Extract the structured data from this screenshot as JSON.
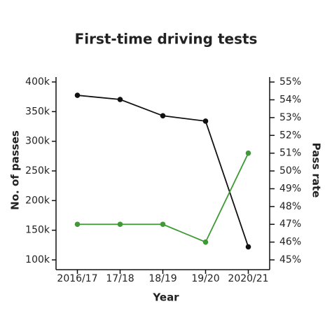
{
  "chart_data": {
    "type": "line",
    "title": "First-time driving tests",
    "x_label": "Year",
    "y_label": "No. of passes",
    "y2_label": "Pass rate",
    "categories": [
      "2016/17",
      "17/18",
      "18/19",
      "19/20",
      "2020/21"
    ],
    "series": [
      {
        "name": "No. of passes",
        "color": "#111111",
        "values": [
          377500,
          370500,
          343000,
          334000,
          122000
        ]
      },
      {
        "name": "Pass rate",
        "color": "#3d9a35",
        "axis": "y2",
        "values": [
          47,
          47,
          47,
          46,
          51
        ]
      }
    ],
    "ylim": [
      83500,
      408300
    ],
    "yticks": [
      {
        "value": 100000,
        "label": "100k"
      },
      {
        "value": 150000,
        "label": "150k"
      },
      {
        "value": 200000,
        "label": "200k"
      },
      {
        "value": 250000,
        "label": "250k"
      },
      {
        "value": 300000,
        "label": "300k"
      },
      {
        "value": 350000,
        "label": "350k"
      },
      {
        "value": 400000,
        "label": "400k"
      }
    ],
    "y2lim": [
      44.45,
      55.28
    ],
    "y2ticks": [
      {
        "value": 45,
        "label": "45%"
      },
      {
        "value": 46,
        "label": "46%"
      },
      {
        "value": 47,
        "label": "47%"
      },
      {
        "value": 48,
        "label": "48%"
      },
      {
        "value": 49,
        "label": "49%"
      },
      {
        "value": 50,
        "label": "50%"
      },
      {
        "value": 51,
        "label": "51%"
      },
      {
        "value": 52,
        "label": "52%"
      },
      {
        "value": 53,
        "label": "53%"
      },
      {
        "value": 54,
        "label": "54%"
      },
      {
        "value": 55,
        "label": "55%"
      }
    ]
  }
}
